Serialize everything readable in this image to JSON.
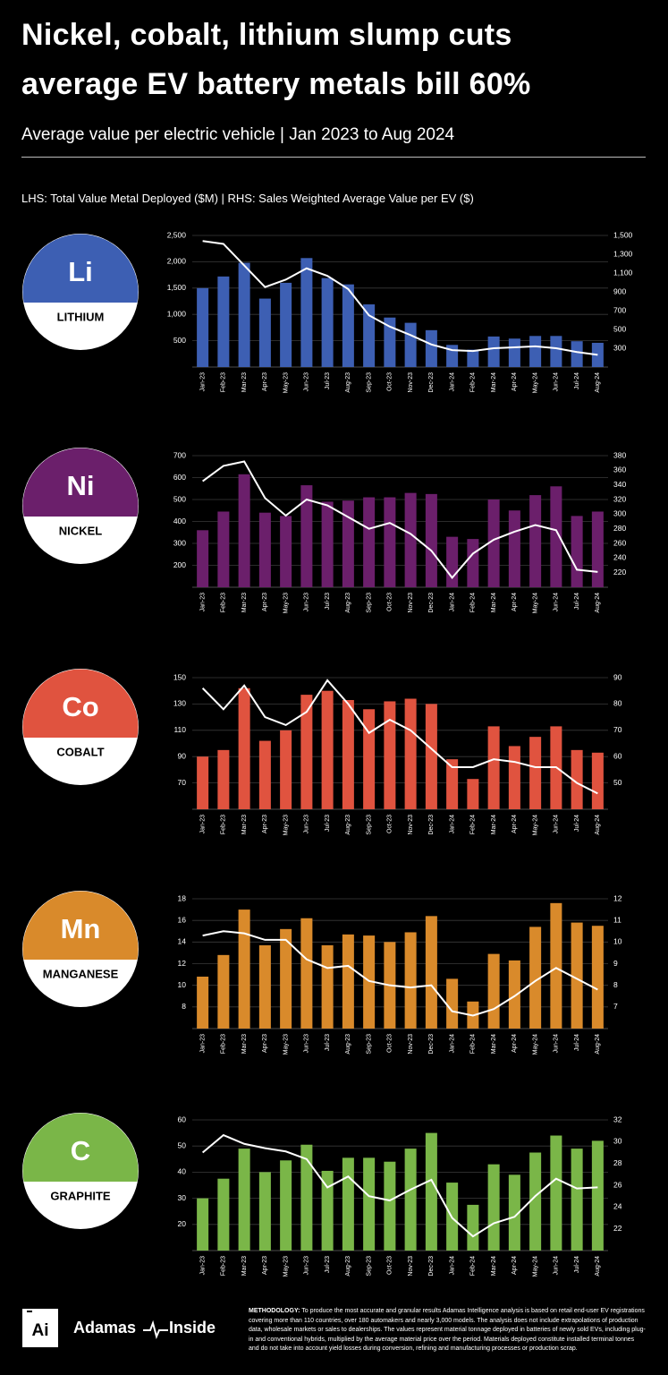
{
  "header": {
    "title_line1": "Nickel, cobalt, lithium slump cuts",
    "title_line2": "average EV battery metals bill 60%",
    "subtitle": "Average value per electric vehicle | Jan 2023 to Aug 2024",
    "axis_note": "LHS: Total Value Metal Deployed ($M)  |  RHS: Sales Weighted Average Value per EV ($)"
  },
  "chart_data": [
    {
      "type": "bar",
      "title": "LITHIUM",
      "symbol": "Li",
      "categories": [
        "Jan-23",
        "Feb-23",
        "Mar-23",
        "Apr-23",
        "May-23",
        "Jun-23",
        "Jul-23",
        "Aug-23",
        "Sep-23",
        "Oct-23",
        "Nov-23",
        "Dec-23",
        "Jan-24",
        "Feb-24",
        "Mar-24",
        "Apr-24",
        "May-24",
        "Jun-24",
        "Jul-24",
        "Aug-24"
      ],
      "series": [
        {
          "type": "bar",
          "color": "#3d5fb3",
          "values": [
            1500,
            1720,
            1980,
            1300,
            1600,
            2070,
            1690,
            1570,
            1190,
            940,
            840,
            700,
            420,
            330,
            580,
            540,
            590,
            590,
            490,
            460
          ]
        },
        {
          "type": "line",
          "color": "#ffffff",
          "axis": "y2",
          "values": [
            1440,
            1410,
            1180,
            950,
            1030,
            1150,
            1070,
            930,
            650,
            530,
            440,
            340,
            280,
            270,
            300,
            310,
            320,
            300,
            260,
            230
          ]
        }
      ],
      "ylim": [
        0,
        2500
      ],
      "yticks": [
        500,
        {
          "value": 1000,
          "label": "1,000"
        },
        {
          "value": 1500,
          "label": "1,500"
        },
        {
          "value": 2000,
          "label": "2,000"
        },
        {
          "value": 2500,
          "label": "2,500"
        }
      ],
      "y2lim": [
        100,
        1500
      ],
      "y2ticks": [
        300,
        500,
        700,
        900,
        {
          "value": 1100,
          "label": "1,100"
        },
        {
          "value": 1300,
          "label": "1,300"
        },
        {
          "value": 1500,
          "label": "1,500"
        }
      ],
      "grid": true
    },
    {
      "type": "bar",
      "title": "NICKEL",
      "symbol": "Ni",
      "categories": [
        "Jan-23",
        "Feb-23",
        "Mar-23",
        "Apr-23",
        "May-23",
        "Jun-23",
        "Jul-23",
        "Aug-23",
        "Sep-23",
        "Oct-23",
        "Nov-23",
        "Dec-23",
        "Jan-24",
        "Feb-24",
        "Mar-24",
        "Apr-24",
        "May-24",
        "Jun-24",
        "Jul-24",
        "Aug-24"
      ],
      "series": [
        {
          "type": "bar",
          "color": "#6b1f6b",
          "values": [
            360,
            445,
            615,
            440,
            425,
            565,
            490,
            495,
            510,
            510,
            530,
            525,
            330,
            320,
            500,
            450,
            520,
            560,
            425,
            445
          ]
        },
        {
          "type": "line",
          "color": "#ffffff",
          "axis": "y2",
          "values": [
            345,
            366,
            372,
            322,
            298,
            320,
            312,
            296,
            280,
            288,
            273,
            250,
            213,
            246,
            265,
            276,
            285,
            278,
            224,
            221
          ]
        }
      ],
      "ylim": [
        100,
        700
      ],
      "yticks": [
        200,
        300,
        400,
        500,
        600,
        700
      ],
      "y2lim": [
        200,
        380
      ],
      "y2ticks": [
        220,
        240,
        260,
        280,
        300,
        320,
        340,
        360,
        380
      ],
      "grid": true
    },
    {
      "type": "bar",
      "title": "COBALT",
      "symbol": "Co",
      "categories": [
        "Jan-23",
        "Feb-23",
        "Mar-23",
        "Apr-23",
        "May-23",
        "Jun-23",
        "Jul-23",
        "Aug-23",
        "Sep-23",
        "Oct-23",
        "Nov-23",
        "Dec-23",
        "Jan-24",
        "Feb-24",
        "Mar-24",
        "Apr-24",
        "May-24",
        "Jun-24",
        "Jul-24",
        "Aug-24"
      ],
      "series": [
        {
          "type": "bar",
          "color": "#e0533f",
          "values": [
            90,
            95,
            142,
            102,
            110,
            137,
            140,
            133,
            126,
            132,
            134,
            130,
            88,
            73,
            113,
            98,
            105,
            113,
            95,
            93
          ]
        },
        {
          "type": "line",
          "color": "#ffffff",
          "axis": "y2",
          "values": [
            86,
            78,
            87,
            75,
            72,
            77,
            89,
            80,
            69,
            74,
            70,
            63,
            56,
            56,
            59,
            58,
            56,
            56,
            50,
            46
          ]
        }
      ],
      "ylim": [
        50,
        150
      ],
      "yticks": [
        70,
        90,
        110,
        130,
        150
      ],
      "y2lim": [
        40,
        90
      ],
      "y2ticks": [
        50,
        60,
        70,
        80,
        90
      ],
      "grid": true
    },
    {
      "type": "bar",
      "title": "MANGANESE",
      "symbol": "Mn",
      "categories": [
        "Jan-23",
        "Feb-23",
        "Mar-23",
        "Apr-23",
        "May-23",
        "Jun-23",
        "Jul-23",
        "Aug-23",
        "Sep-23",
        "Oct-23",
        "Nov-23",
        "Dec-23",
        "Jan-24",
        "Feb-24",
        "Mar-24",
        "Apr-24",
        "May-24",
        "Jun-24",
        "Jul-24",
        "Aug-24"
      ],
      "series": [
        {
          "type": "bar",
          "color": "#d98a2b",
          "values": [
            10.8,
            12.8,
            17.0,
            13.7,
            15.2,
            16.2,
            13.7,
            14.7,
            14.6,
            14.0,
            14.9,
            16.4,
            10.6,
            8.5,
            12.9,
            12.3,
            15.4,
            17.6,
            15.8,
            15.5
          ]
        },
        {
          "type": "line",
          "color": "#ffffff",
          "axis": "y2",
          "values": [
            10.3,
            10.5,
            10.4,
            10.1,
            10.1,
            9.2,
            8.8,
            8.9,
            8.2,
            8.0,
            7.9,
            8.0,
            6.8,
            6.6,
            6.9,
            7.5,
            8.2,
            8.8,
            8.3,
            7.8
          ]
        }
      ],
      "ylim": [
        6,
        18
      ],
      "yticks": [
        8,
        10,
        12,
        14,
        16,
        18
      ],
      "y2lim": [
        6,
        12
      ],
      "y2ticks": [
        7,
        8,
        9,
        10,
        11,
        12
      ],
      "grid": true
    },
    {
      "type": "bar",
      "title": "GRAPHITE",
      "symbol": "C",
      "categories": [
        "Jan-23",
        "Feb-23",
        "Mar-23",
        "Apr-23",
        "May-23",
        "Jun-23",
        "Jul-23",
        "Aug-23",
        "Sep-23",
        "Oct-23",
        "Nov-23",
        "Dec-23",
        "Jan-24",
        "Feb-24",
        "Mar-24",
        "Apr-24",
        "May-24",
        "Jun-24",
        "Jul-24",
        "Aug-24"
      ],
      "series": [
        {
          "type": "bar",
          "color": "#7ab648",
          "values": [
            30,
            37.5,
            49,
            40,
            44.5,
            50.5,
            40.5,
            45.5,
            45.5,
            44,
            49,
            55,
            36,
            27.5,
            43,
            39,
            47.5,
            54,
            49,
            52
          ]
        },
        {
          "type": "line",
          "color": "#ffffff",
          "axis": "y2",
          "values": [
            29,
            30.6,
            29.8,
            29.4,
            29.1,
            28.4,
            25.8,
            26.8,
            25.0,
            24.6,
            25.6,
            26.5,
            23.0,
            21.3,
            22.5,
            23.1,
            25.0,
            26.6,
            25.7,
            25.8
          ]
        }
      ],
      "ylim": [
        10,
        60
      ],
      "yticks": [
        20,
        30,
        40,
        50,
        60
      ],
      "y2lim": [
        20,
        32
      ],
      "y2ticks": [
        22,
        24,
        26,
        28,
        30,
        32
      ],
      "grid": true
    }
  ],
  "footer": {
    "logo": "Ai",
    "brand_left": "Adamas",
    "brand_right": "Inside",
    "methodology_label": "METHODOLOGY:",
    "methodology": "To produce the most accurate and granular results Adamas Intelligence analysis is based on retail end-user EV registrations covering more than 110 countries, over 180 automakers and nearly 3,000 models. The analysis does not include extrapolations of production data, wholesale markets or sales to dealerships. The values represent material tonnage deployed in batteries of newly sold EVs, including plug-in and conventional hybrids, multiplied by the average material price over the period. Materials deployed constitute installed terminal tonnes and do not take into account yield losses during conversion, refining and manufacturing processes or production scrap."
  }
}
